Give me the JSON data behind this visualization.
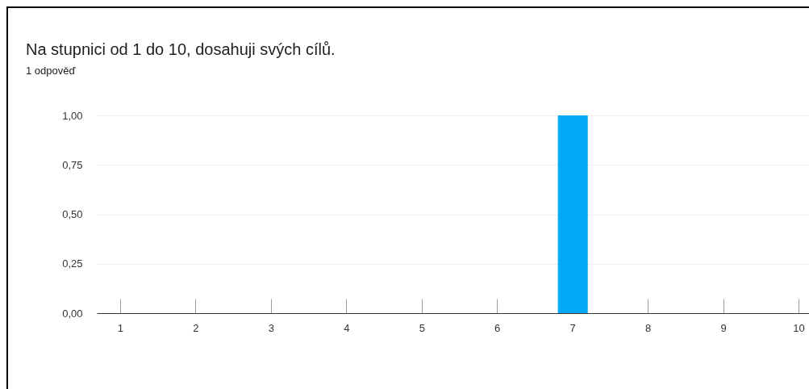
{
  "chart_data": {
    "type": "bar",
    "title": "Na stupnici od 1 do 10, dosahuji svých cílů.",
    "subtitle": "1 odpověď",
    "categories": [
      "1",
      "2",
      "3",
      "4",
      "5",
      "6",
      "7",
      "8",
      "9",
      "10"
    ],
    "values": [
      0,
      0,
      0,
      0,
      0,
      0,
      1,
      0,
      0,
      0
    ],
    "color": "#03a9f4",
    "ylim": [
      0,
      1
    ],
    "yticks": [
      {
        "value": 0,
        "label": "0,00"
      },
      {
        "value": 0.25,
        "label": "0,25"
      },
      {
        "value": 0.5,
        "label": "0,50"
      },
      {
        "value": 0.75,
        "label": "0,75"
      },
      {
        "value": 1,
        "label": "1,00"
      }
    ],
    "grid": "y"
  }
}
